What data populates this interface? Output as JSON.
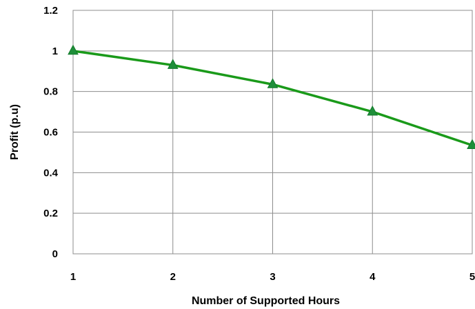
{
  "chart_data": {
    "type": "line",
    "title": "",
    "xlabel": "Number of Supported Hours",
    "ylabel": "Profit (p.u)",
    "x": [
      1,
      2,
      3,
      4,
      5
    ],
    "series": [
      {
        "values": [
          1.0,
          0.93,
          0.835,
          0.7,
          0.535
        ],
        "color": "#1a9a1a",
        "marker": "triangle",
        "marker_color": "#1f8f3a"
      }
    ],
    "xlim": [
      1,
      5
    ],
    "ylim": [
      0,
      1.2
    ],
    "xticks": [
      "1",
      "2",
      "3",
      "4",
      "5"
    ],
    "yticks": [
      "0",
      "0.2",
      "0.4",
      "0.6",
      "0.8",
      "1",
      "1.2"
    ],
    "grid": true,
    "legend": "none"
  }
}
